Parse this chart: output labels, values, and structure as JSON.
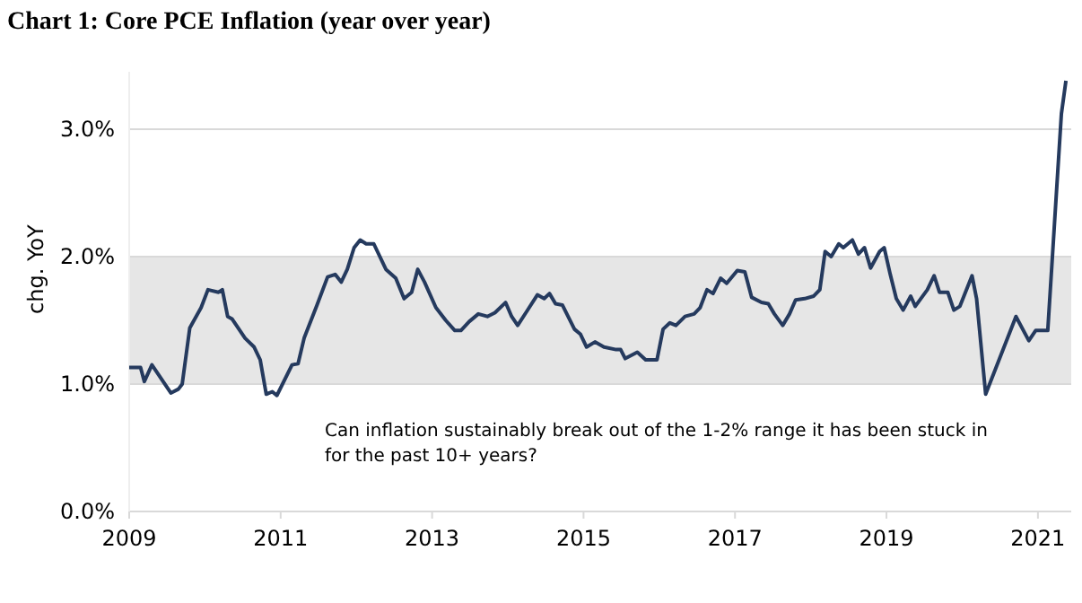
{
  "chart_data": {
    "type": "line",
    "title": "Chart 1: Core PCE Inflation (year over year)",
    "ylabel": "chg. YoY",
    "annotations": [
      "Can inflation sustainably break out of the 1-2% range it has been stuck in for the past 10+ years?"
    ],
    "x": [
      2009.0,
      2009.15,
      2009.2,
      2009.3,
      2009.55,
      2009.65,
      2009.7,
      2009.8,
      2009.95,
      2010.04,
      2010.18,
      2010.23,
      2010.3,
      2010.36,
      2010.53,
      2010.65,
      2010.73,
      2010.81,
      2010.89,
      2010.95,
      2011.15,
      2011.23,
      2011.31,
      2011.48,
      2011.62,
      2011.72,
      2011.8,
      2011.88,
      2011.97,
      2012.05,
      2012.13,
      2012.23,
      2012.39,
      2012.52,
      2012.63,
      2012.73,
      2012.81,
      2012.9,
      2013.05,
      2013.18,
      2013.3,
      2013.38,
      2013.49,
      2013.61,
      2013.73,
      2013.83,
      2013.97,
      2014.05,
      2014.13,
      2014.25,
      2014.39,
      2014.48,
      2014.55,
      2014.63,
      2014.72,
      2014.88,
      2014.96,
      2015.04,
      2015.15,
      2015.27,
      2015.43,
      2015.49,
      2015.55,
      2015.71,
      2015.82,
      2015.97,
      2016.05,
      2016.14,
      2016.22,
      2016.34,
      2016.46,
      2016.54,
      2016.63,
      2016.71,
      2016.81,
      2016.89,
      2017.03,
      2017.13,
      2017.22,
      2017.35,
      2017.44,
      2017.52,
      2017.63,
      2017.72,
      2017.8,
      2017.92,
      2018.04,
      2018.12,
      2018.19,
      2018.27,
      2018.37,
      2018.43,
      2018.55,
      2018.63,
      2018.71,
      2018.79,
      2018.91,
      2018.97,
      2019.05,
      2019.13,
      2019.22,
      2019.32,
      2019.38,
      2019.54,
      2019.63,
      2019.7,
      2019.81,
      2019.89,
      2019.97,
      2020.13,
      2020.19,
      2020.31,
      2020.71,
      2020.88,
      2020.97,
      2021.13,
      2021.31,
      2021.37
    ],
    "series": [
      {
        "color": "#253a5e",
        "values": [
          1.13,
          1.13,
          1.02,
          1.15,
          0.93,
          0.96,
          1.0,
          1.44,
          1.6,
          1.74,
          1.72,
          1.74,
          1.53,
          1.51,
          1.36,
          1.29,
          1.19,
          0.92,
          0.94,
          0.91,
          1.15,
          1.16,
          1.36,
          1.62,
          1.84,
          1.86,
          1.8,
          1.9,
          2.07,
          2.13,
          2.1,
          2.1,
          1.9,
          1.83,
          1.67,
          1.72,
          1.9,
          1.8,
          1.6,
          1.5,
          1.42,
          1.42,
          1.49,
          1.55,
          1.53,
          1.56,
          1.64,
          1.53,
          1.46,
          1.57,
          1.7,
          1.67,
          1.71,
          1.63,
          1.62,
          1.43,
          1.39,
          1.29,
          1.33,
          1.29,
          1.27,
          1.27,
          1.2,
          1.25,
          1.19,
          1.19,
          1.43,
          1.48,
          1.46,
          1.53,
          1.55,
          1.6,
          1.74,
          1.71,
          1.83,
          1.79,
          1.89,
          1.88,
          1.68,
          1.64,
          1.63,
          1.55,
          1.46,
          1.55,
          1.66,
          1.67,
          1.69,
          1.74,
          2.04,
          2.0,
          2.1,
          2.07,
          2.13,
          2.02,
          2.07,
          1.91,
          2.04,
          2.07,
          1.86,
          1.67,
          1.58,
          1.69,
          1.61,
          1.74,
          1.85,
          1.72,
          1.72,
          1.58,
          1.61,
          1.85,
          1.67,
          0.92,
          1.53,
          1.34,
          1.42,
          1.42,
          3.12,
          3.38
        ]
      }
    ],
    "xlim": [
      2009,
      2021.44
    ],
    "xticks": [
      2009,
      2011,
      2013,
      2015,
      2017,
      2019,
      2021
    ],
    "ylim": [
      0,
      3.45
    ],
    "yticks": [
      {
        "value": 0,
        "label": "0.0%"
      },
      {
        "value": 1,
        "label": "1.0%"
      },
      {
        "value": 2,
        "label": "2.0%"
      },
      {
        "value": 3,
        "label": "3.0%"
      }
    ],
    "bands": [
      {
        "axis": "y",
        "from": 1,
        "to": 2,
        "color": "#e6e6e6"
      }
    ],
    "grid": "y",
    "marker": "none",
    "line_style": "solid"
  }
}
